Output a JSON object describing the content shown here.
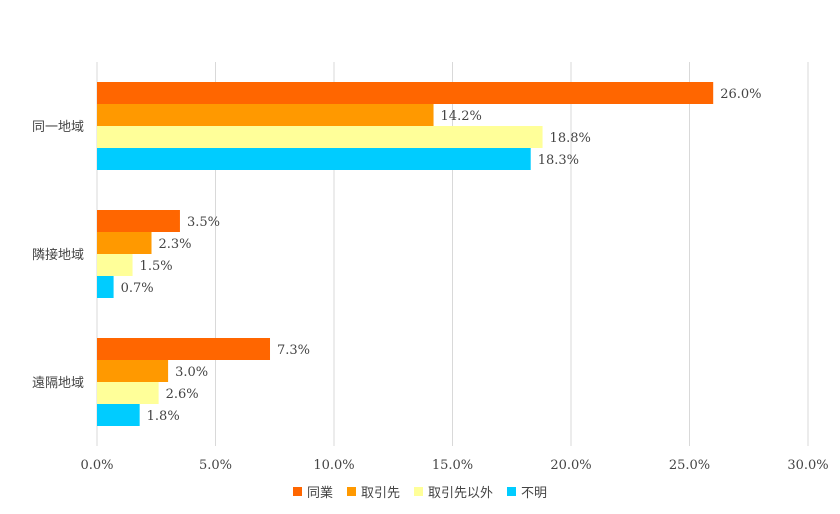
{
  "chart_data": {
    "type": "bar",
    "orientation": "horizontal",
    "categories": [
      "同一地域",
      "隣接地域",
      "遠隔地域"
    ],
    "series": [
      {
        "name": "同業",
        "color": "#FF6600",
        "values": [
          26.0,
          3.5,
          7.3
        ],
        "labels": [
          "26.0%",
          "3.5%",
          "7.3%"
        ]
      },
      {
        "name": "取引先",
        "color": "#FF9900",
        "values": [
          14.2,
          2.3,
          3.0
        ],
        "labels": [
          "14.2%",
          "2.3%",
          "3.0%"
        ]
      },
      {
        "name": "取引先以外",
        "color": "#FFFF99",
        "values": [
          18.8,
          1.5,
          2.6
        ],
        "labels": [
          "18.8%",
          "1.5%",
          "2.6%"
        ]
      },
      {
        "name": "不明",
        "color": "#00CCFF",
        "values": [
          18.3,
          0.7,
          1.8
        ],
        "labels": [
          "18.3%",
          "0.7%",
          "1.8%"
        ]
      }
    ],
    "xlim": [
      0,
      30
    ],
    "xticks": [
      "0.0%",
      "5.0%",
      "10.0%",
      "15.0%",
      "20.0%",
      "25.0%",
      "30.0%"
    ],
    "grid": "vertical",
    "legend_position": "bottom"
  }
}
